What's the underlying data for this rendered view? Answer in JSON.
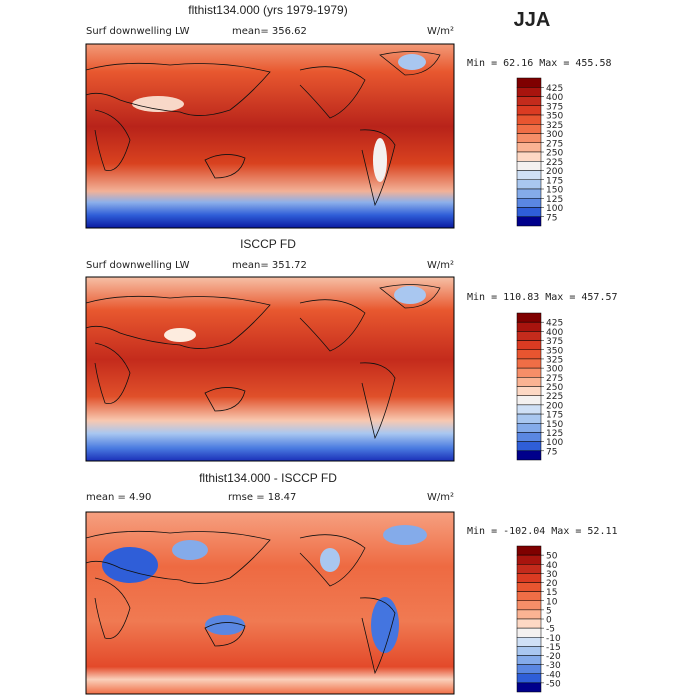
{
  "season": "JJA",
  "panels": [
    {
      "title": "flthist134.000 (yrs 1979-1979)",
      "left_text": "Surf downwelling LW",
      "mid_text": "mean= 356.62",
      "units": "W/m²",
      "range_text": "Min =  62.16 Max = 455.58",
      "colorbar": {
        "levels": [
          425,
          400,
          375,
          350,
          325,
          300,
          275,
          250,
          225,
          200,
          175,
          150,
          125,
          100,
          75
        ],
        "colors": [
          "#7f0000",
          "#a8140e",
          "#c42b1c",
          "#db3b22",
          "#e85530",
          "#f06e46",
          "#f68e68",
          "#fab393",
          "#fdd8c4",
          "#f4f1f0",
          "#cfe0f6",
          "#a9c7f0",
          "#84abea",
          "#5a87e2",
          "#2f5ed8",
          "#00008b"
        ]
      }
    },
    {
      "title": "ISCCP FD",
      "left_text": "Surf downwelling LW",
      "mid_text": "mean= 351.72",
      "units": "W/m²",
      "range_text": "Min = 110.83 Max = 457.57",
      "colorbar": {
        "levels": [
          425,
          400,
          375,
          350,
          325,
          300,
          275,
          250,
          225,
          200,
          175,
          150,
          125,
          100,
          75
        ],
        "colors": [
          "#7f0000",
          "#a8140e",
          "#c42b1c",
          "#db3b22",
          "#e85530",
          "#f06e46",
          "#f68e68",
          "#fab393",
          "#fdd8c4",
          "#f4f1f0",
          "#cfe0f6",
          "#a9c7f0",
          "#84abea",
          "#5a87e2",
          "#2f5ed8",
          "#00008b"
        ]
      }
    },
    {
      "title": "flthist134.000 - ISCCP FD",
      "left_text": "mean =   4.90",
      "mid_text": "rmse =  18.47",
      "units": "W/m²",
      "range_text": "Min = -102.04 Max =  52.11",
      "colorbar": {
        "levels": [
          50,
          40,
          30,
          20,
          15,
          10,
          5,
          0,
          -5,
          -10,
          -15,
          -20,
          -30,
          -40,
          -50
        ],
        "colors": [
          "#7f0000",
          "#a8140e",
          "#c42b1c",
          "#db3b22",
          "#e85530",
          "#f06e46",
          "#f68e68",
          "#fab393",
          "#fdd8c4",
          "#f4f1f0",
          "#cfe0f6",
          "#a9c7f0",
          "#84abea",
          "#5a87e2",
          "#2f5ed8",
          "#00008b"
        ]
      }
    }
  ]
}
